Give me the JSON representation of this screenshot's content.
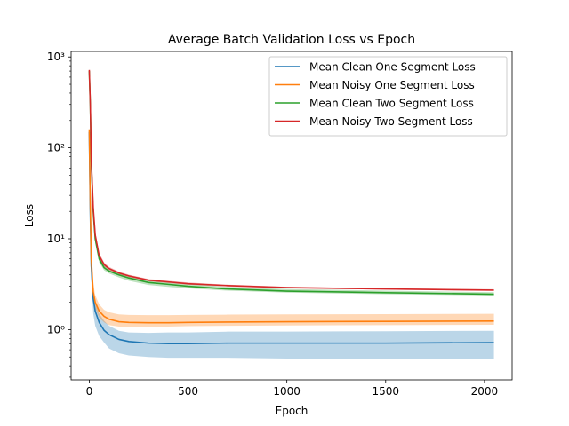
{
  "chart_data": {
    "type": "line",
    "title": "Average Batch Validation Loss vs Epoch",
    "xlabel": "Epoch",
    "ylabel": "Loss",
    "yscale": "log",
    "xlim": [
      -92,
      2140
    ],
    "ylim": [
      0.28,
      1150
    ],
    "grid": false,
    "legend_position": "upper right",
    "x_ticks": [
      0,
      500,
      1000,
      1500,
      2000
    ],
    "y_ticks": [
      {
        "value": 1,
        "label": "10⁰"
      },
      {
        "value": 10,
        "label": "10¹"
      },
      {
        "value": 100,
        "label": "10²"
      },
      {
        "value": 1000,
        "label": "10³"
      }
    ],
    "series": [
      {
        "name": "Mean Clean One Segment Loss",
        "color": "#1f77b4",
        "x": [
          0,
          5,
          10,
          20,
          30,
          50,
          75,
          100,
          150,
          200,
          300,
          400,
          500,
          700,
          1000,
          1500,
          2048
        ],
        "y": [
          150,
          20,
          5,
          2.2,
          1.6,
          1.2,
          0.98,
          0.88,
          0.78,
          0.74,
          0.71,
          0.7,
          0.7,
          0.71,
          0.71,
          0.71,
          0.72
        ],
        "band_lower": [
          140,
          15,
          3.5,
          1.5,
          1.1,
          0.85,
          0.72,
          0.62,
          0.55,
          0.52,
          0.5,
          0.49,
          0.49,
          0.49,
          0.48,
          0.48,
          0.47
        ],
        "band_upper": [
          160,
          24,
          6.2,
          2.8,
          2.0,
          1.5,
          1.25,
          1.1,
          0.97,
          0.93,
          0.92,
          0.93,
          0.93,
          0.95,
          0.95,
          0.96,
          0.97
        ]
      },
      {
        "name": "Mean Noisy One Segment Loss",
        "color": "#ff7f0e",
        "x": [
          0,
          5,
          10,
          20,
          30,
          50,
          75,
          100,
          150,
          200,
          300,
          400,
          500,
          700,
          1000,
          1500,
          2048
        ],
        "y": [
          160,
          25,
          6,
          2.6,
          2.0,
          1.6,
          1.4,
          1.3,
          1.22,
          1.2,
          1.19,
          1.19,
          1.2,
          1.21,
          1.22,
          1.23,
          1.24
        ],
        "band_lower": [
          150,
          20,
          5,
          2.1,
          1.7,
          1.35,
          1.2,
          1.12,
          1.08,
          1.07,
          1.07,
          1.08,
          1.09,
          1.1,
          1.11,
          1.12,
          1.13
        ],
        "band_upper": [
          170,
          30,
          7,
          3.2,
          2.4,
          1.9,
          1.65,
          1.55,
          1.47,
          1.45,
          1.44,
          1.44,
          1.45,
          1.46,
          1.47,
          1.48,
          1.49
        ]
      },
      {
        "name": "Mean Clean Two Segment Loss",
        "color": "#2ca02c",
        "x": [
          0,
          5,
          10,
          20,
          30,
          50,
          75,
          100,
          150,
          200,
          300,
          400,
          500,
          700,
          1000,
          1500,
          2048
        ],
        "y": [
          700,
          300,
          70,
          20,
          10,
          6,
          4.8,
          4.4,
          4.0,
          3.7,
          3.3,
          3.15,
          3.0,
          2.8,
          2.65,
          2.55,
          2.45
        ],
        "band_lower": [
          680,
          280,
          60,
          18,
          9,
          5.5,
          4.5,
          4.15,
          3.75,
          3.45,
          3.1,
          2.95,
          2.85,
          2.68,
          2.55,
          2.45,
          2.38
        ],
        "band_upper": [
          720,
          320,
          80,
          22,
          11,
          6.5,
          5.1,
          4.65,
          4.25,
          3.95,
          3.5,
          3.35,
          3.2,
          2.95,
          2.8,
          2.68,
          2.58
        ]
      },
      {
        "name": "Mean Noisy Two Segment Loss",
        "color": "#d62728",
        "x": [
          0,
          5,
          10,
          20,
          30,
          50,
          75,
          100,
          150,
          200,
          300,
          400,
          500,
          700,
          1000,
          1500,
          2048
        ],
        "y": [
          720,
          310,
          75,
          22,
          11,
          6.5,
          5.2,
          4.7,
          4.2,
          3.9,
          3.5,
          3.35,
          3.2,
          3.05,
          2.9,
          2.8,
          2.72
        ],
        "band_lower": [
          700,
          290,
          65,
          20,
          10,
          6.0,
          4.9,
          4.5,
          4.05,
          3.78,
          3.4,
          3.25,
          3.12,
          2.98,
          2.84,
          2.75,
          2.68
        ],
        "band_upper": [
          740,
          330,
          85,
          24,
          12,
          7.0,
          5.5,
          4.9,
          4.35,
          4.02,
          3.6,
          3.45,
          3.3,
          3.12,
          2.96,
          2.86,
          2.78
        ]
      }
    ]
  }
}
